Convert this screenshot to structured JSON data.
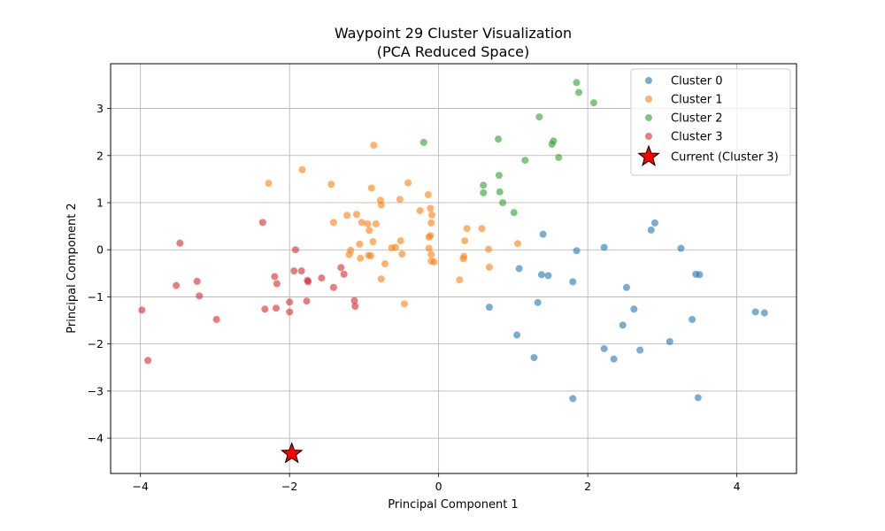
{
  "chart_data": {
    "type": "scatter",
    "title": "Waypoint 29 Cluster Visualization",
    "subtitle": "(PCA Reduced Space)",
    "xlabel": "Principal Component 1",
    "ylabel": "Principal Component 2",
    "xlim": [
      -4.4,
      4.8
    ],
    "ylim": [
      -4.75,
      3.95
    ],
    "xticks": [
      -4,
      -2,
      0,
      2,
      4
    ],
    "yticks": [
      -4,
      -3,
      -2,
      -1,
      0,
      1,
      2,
      3
    ],
    "xtick_labels": [
      "−4",
      "−2",
      "0",
      "2",
      "4"
    ],
    "ytick_labels": [
      "−4",
      "−3",
      "−2",
      "−1",
      "0",
      "1",
      "2",
      "3"
    ],
    "grid": true,
    "legend_position": "top-right",
    "series": [
      {
        "name": "Cluster 0",
        "color": "#1f77b4",
        "points": [
          [
            2.22,
            0.05
          ],
          [
            1.85,
            -0.02
          ],
          [
            1.4,
            0.33
          ],
          [
            2.9,
            0.57
          ],
          [
            2.85,
            0.42
          ],
          [
            3.25,
            0.03
          ],
          [
            3.45,
            -0.52
          ],
          [
            3.5,
            -0.53
          ],
          [
            1.38,
            -0.53
          ],
          [
            1.47,
            -0.55
          ],
          [
            1.8,
            -0.68
          ],
          [
            1.08,
            -0.4
          ],
          [
            2.52,
            -0.8
          ],
          [
            0.68,
            -1.22
          ],
          [
            1.33,
            -1.12
          ],
          [
            2.62,
            -1.26
          ],
          [
            2.47,
            -1.6
          ],
          [
            3.4,
            -1.48
          ],
          [
            4.25,
            -1.32
          ],
          [
            4.37,
            -1.34
          ],
          [
            1.05,
            -1.81
          ],
          [
            3.1,
            -1.95
          ],
          [
            2.22,
            -2.1
          ],
          [
            2.7,
            -2.13
          ],
          [
            2.35,
            -2.32
          ],
          [
            1.28,
            -2.29
          ],
          [
            1.8,
            -3.16
          ],
          [
            3.48,
            -3.14
          ]
        ]
      },
      {
        "name": "Cluster 1",
        "color": "#ff7f0e",
        "points": [
          [
            -0.87,
            2.22
          ],
          [
            -1.83,
            1.7
          ],
          [
            -2.28,
            1.41
          ],
          [
            -1.44,
            1.39
          ],
          [
            -0.41,
            1.42
          ],
          [
            -0.9,
            1.31
          ],
          [
            -0.14,
            1.17
          ],
          [
            -0.52,
            1.07
          ],
          [
            -0.78,
            1.05
          ],
          [
            -0.77,
            0.95
          ],
          [
            -0.25,
            0.83
          ],
          [
            -0.11,
            0.88
          ],
          [
            -0.09,
            0.74
          ],
          [
            -1.23,
            0.73
          ],
          [
            -1.1,
            0.75
          ],
          [
            -1.41,
            0.58
          ],
          [
            -1.03,
            0.58
          ],
          [
            -0.95,
            0.55
          ],
          [
            -0.84,
            0.55
          ],
          [
            -0.1,
            0.57
          ],
          [
            0.38,
            0.45
          ],
          [
            0.58,
            0.45
          ],
          [
            -0.93,
            0.41
          ],
          [
            -0.13,
            0.27
          ],
          [
            -0.11,
            0.3
          ],
          [
            0.35,
            0.19
          ],
          [
            -0.51,
            0.19
          ],
          [
            -0.88,
            0.17
          ],
          [
            -1.06,
            0.12
          ],
          [
            1.06,
            0.13
          ],
          [
            -0.58,
            0.05
          ],
          [
            -0.63,
            0.04
          ],
          [
            -0.13,
            0.03
          ],
          [
            0.67,
            0.01
          ],
          [
            -1.18,
            -0.01
          ],
          [
            -1.2,
            -0.1
          ],
          [
            -0.94,
            -0.12
          ],
          [
            -0.91,
            -0.13
          ],
          [
            -0.49,
            -0.09
          ],
          [
            -0.1,
            -0.1
          ],
          [
            0.34,
            -0.14
          ],
          [
            0.33,
            -0.19
          ],
          [
            -1.05,
            -0.18
          ],
          [
            -0.1,
            -0.24
          ],
          [
            -0.06,
            -0.26
          ],
          [
            -0.72,
            -0.3
          ],
          [
            0.68,
            -0.37
          ],
          [
            -0.77,
            -0.62
          ],
          [
            0.28,
            -0.64
          ],
          [
            -0.46,
            -1.15
          ]
        ]
      },
      {
        "name": "Cluster 2",
        "color": "#2ca02c",
        "points": [
          [
            1.85,
            3.55
          ],
          [
            1.88,
            3.34
          ],
          [
            2.08,
            3.12
          ],
          [
            1.35,
            2.82
          ],
          [
            0.8,
            2.35
          ],
          [
            1.54,
            2.31
          ],
          [
            1.52,
            2.24
          ],
          [
            -0.2,
            2.28
          ],
          [
            1.61,
            1.96
          ],
          [
            1.16,
            1.9
          ],
          [
            0.81,
            1.58
          ],
          [
            0.6,
            1.37
          ],
          [
            0.6,
            1.21
          ],
          [
            0.82,
            1.23
          ],
          [
            0.86,
            1.0
          ],
          [
            1.01,
            0.79
          ]
        ]
      },
      {
        "name": "Cluster 3",
        "color": "#d62728",
        "points": [
          [
            -2.36,
            0.58
          ],
          [
            -3.47,
            0.14
          ],
          [
            -1.92,
            0.0
          ],
          [
            -1.94,
            -0.45
          ],
          [
            -1.84,
            -0.45
          ],
          [
            -1.31,
            -0.38
          ],
          [
            -1.27,
            -0.52
          ],
          [
            -2.2,
            -0.57
          ],
          [
            -1.57,
            -0.6
          ],
          [
            -3.24,
            -0.67
          ],
          [
            -1.76,
            -0.65
          ],
          [
            -1.75,
            -0.68
          ],
          [
            -2.17,
            -0.72
          ],
          [
            -3.52,
            -0.76
          ],
          [
            -1.41,
            -0.8
          ],
          [
            -3.21,
            -0.98
          ],
          [
            -1.13,
            -1.08
          ],
          [
            -1.77,
            -1.09
          ],
          [
            -2.0,
            -1.11
          ],
          [
            -1.12,
            -1.2
          ],
          [
            -2.33,
            -1.26
          ],
          [
            -2.18,
            -1.24
          ],
          [
            -3.98,
            -1.28
          ],
          [
            -2.0,
            -1.32
          ],
          [
            -2.98,
            -1.48
          ],
          [
            -3.9,
            -2.35
          ]
        ]
      },
      {
        "name": "Current (Cluster 3)",
        "color": "#ff0000",
        "marker": "star",
        "points": [
          [
            -1.97,
            -4.33
          ]
        ]
      }
    ]
  }
}
